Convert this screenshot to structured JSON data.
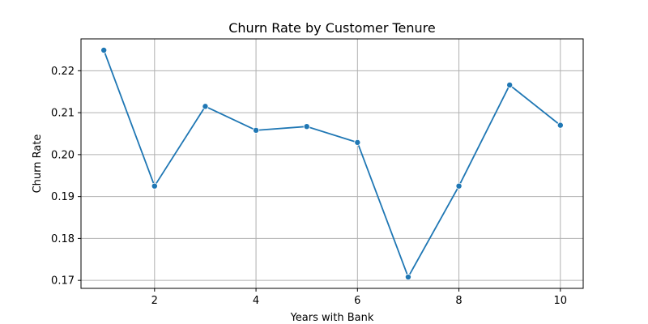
{
  "chart_data": {
    "type": "line",
    "title": "Churn Rate by Customer Tenure",
    "xlabel": "Years with Bank",
    "ylabel": "Churn Rate",
    "x": [
      1,
      2,
      3,
      4,
      5,
      6,
      7,
      8,
      9,
      10
    ],
    "series": [
      {
        "values": [
          0.2249,
          0.1925,
          0.2115,
          0.2058,
          0.2067,
          0.2029,
          0.1708,
          0.1925,
          0.2166,
          0.207
        ]
      }
    ],
    "xticks": [
      2,
      4,
      6,
      8,
      10
    ],
    "yticks": [
      0.17,
      0.18,
      0.19,
      0.2,
      0.21,
      0.22
    ],
    "xtick_labels": [
      "2",
      "4",
      "6",
      "8",
      "10"
    ],
    "ytick_labels": [
      "0.17",
      "0.18",
      "0.19",
      "0.20",
      "0.21",
      "0.22"
    ],
    "xlim": [
      0.55,
      10.45
    ],
    "ylim": [
      0.1681,
      0.2276
    ],
    "grid": true,
    "line_color": "#1f77b4",
    "grid_color": "#b0b0b0",
    "marker": "circle"
  }
}
